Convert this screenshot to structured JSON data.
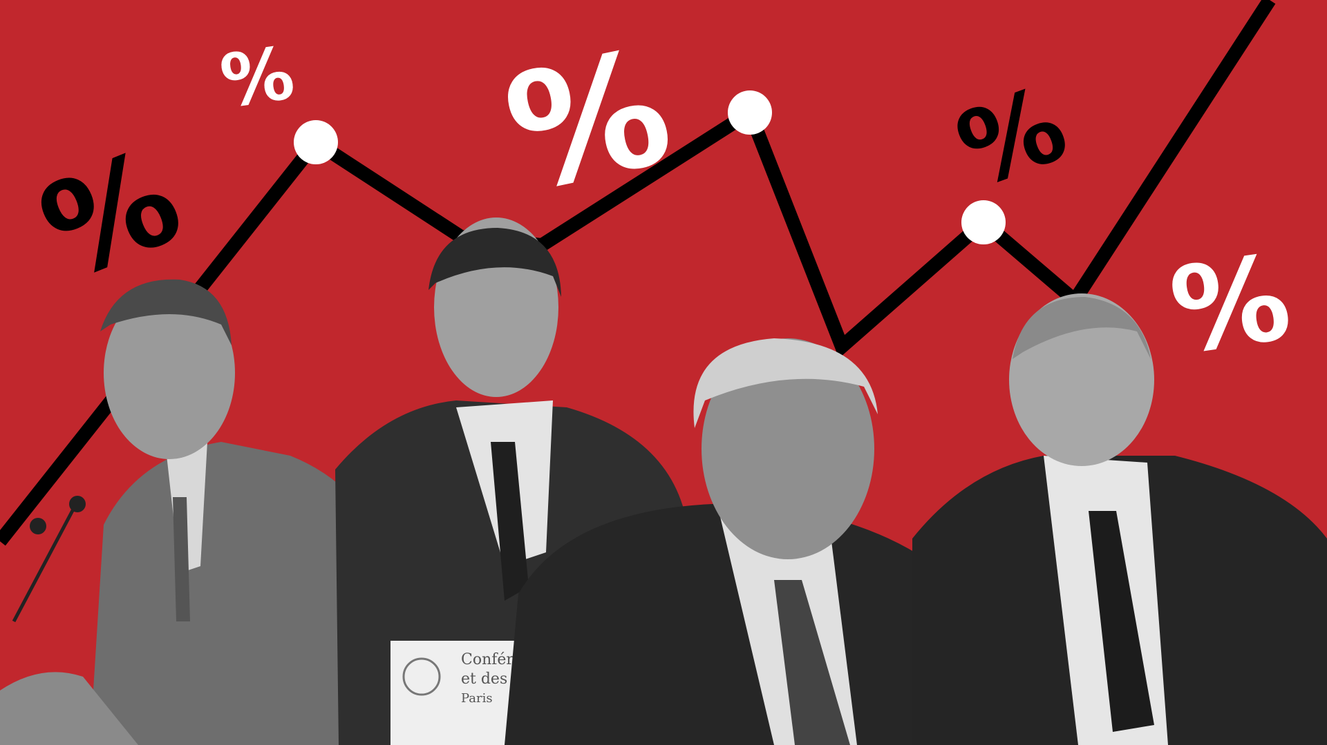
{
  "colors": {
    "background": "#c1272d",
    "line": "#000000",
    "markers": "#ffffff",
    "figures": "#3a3a3a"
  },
  "symbols": [
    "%",
    "%",
    "%",
    "%",
    "%"
  ],
  "podium": {
    "line1": "Confér",
    "line2": "et des",
    "line3": "Paris"
  },
  "icons": [
    "percent-icon",
    "trend-line",
    "coat-of-arms"
  ]
}
